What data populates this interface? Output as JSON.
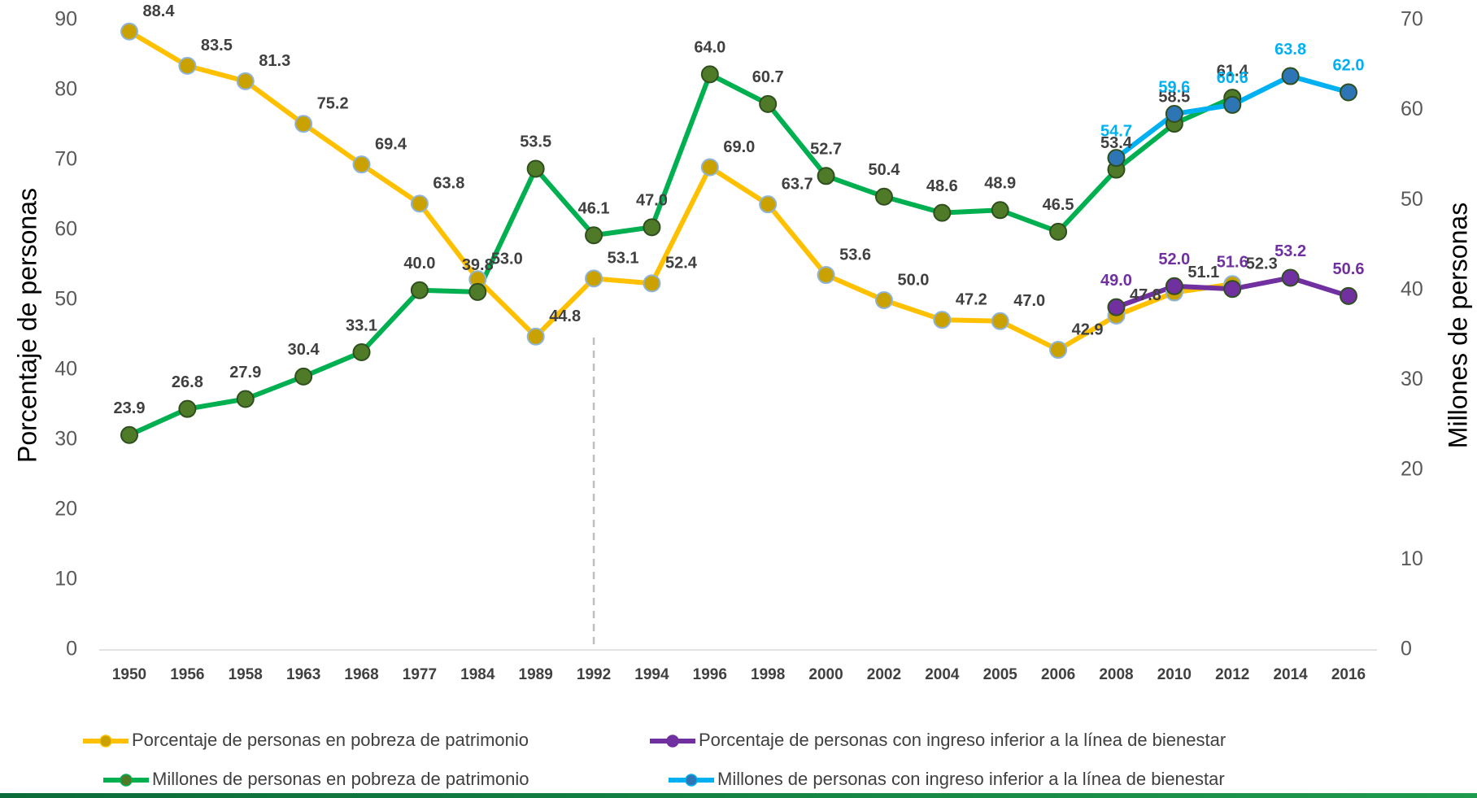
{
  "chart_data": {
    "type": "line",
    "y_label": "Porcentaje de personas",
    "y2_label": "Millones de personas",
    "categories": [
      "1950",
      "1956",
      "1958",
      "1963",
      "1968",
      "1977",
      "1984",
      "1989",
      "1992",
      "1994",
      "1996",
      "1998",
      "2000",
      "2002",
      "2004",
      "2005",
      "2006",
      "2008",
      "2010",
      "2012",
      "2014",
      "2016"
    ],
    "ylim": [
      0,
      90
    ],
    "yticks": [
      0,
      10,
      20,
      30,
      40,
      50,
      60,
      70,
      80,
      90
    ],
    "y2lim": [
      0,
      70
    ],
    "y2ticks": [
      0,
      10,
      20,
      30,
      40,
      50,
      60,
      70
    ],
    "series": [
      {
        "name": "Porcentaje de personas en pobreza de patrimonio",
        "color": "#FFC000",
        "marker_color": "#C9A100",
        "label_color": "#404040",
        "values": [
          88.4,
          83.5,
          81.3,
          75.2,
          69.4,
          63.8,
          53.0,
          44.8,
          53.1,
          52.4,
          69.0,
          63.7,
          53.6,
          50.0,
          47.2,
          47.0,
          42.9,
          47.8,
          51.1,
          52.3,
          null,
          null
        ],
        "value_labels": [
          "88.4",
          "83.5",
          "81.3",
          "75.2",
          "69.4",
          "63.8",
          "53.0",
          "44.8",
          "53.1",
          "52.4",
          "69.0",
          "63.7",
          "53.6",
          "50.0",
          "47.2",
          "47.0",
          "42.9",
          "47.8",
          "51.1",
          "52.3",
          null,
          null
        ]
      },
      {
        "name": "Porcentaje de personas con ingreso inferior a la línea de bienestar",
        "color": "#7030A0",
        "marker_color": "#7030A0",
        "label_color": "#7030A0",
        "values": [
          null,
          null,
          null,
          null,
          null,
          null,
          null,
          null,
          null,
          null,
          null,
          null,
          null,
          null,
          null,
          null,
          null,
          49.0,
          52.0,
          51.6,
          53.2,
          50.6
        ],
        "value_labels": [
          null,
          null,
          null,
          null,
          null,
          null,
          null,
          null,
          null,
          null,
          null,
          null,
          null,
          null,
          null,
          null,
          null,
          "49.0",
          "52.0",
          "51.6",
          "53.2",
          "50.6"
        ]
      },
      {
        "name": "Millones de personas en pobreza de patrimonio",
        "color": "#00B050",
        "marker_color": "#4F7A28",
        "label_color": "#404040",
        "axis": "y2",
        "values": [
          23.9,
          26.8,
          27.9,
          30.4,
          33.1,
          40.0,
          39.8,
          53.5,
          46.1,
          47.0,
          64.0,
          60.7,
          52.7,
          50.4,
          48.6,
          48.9,
          46.5,
          53.4,
          58.5,
          61.4,
          null,
          null
        ],
        "value_labels": [
          "23.9",
          "26.8",
          "27.9",
          "30.4",
          "33.1",
          "40.0",
          "39.8",
          "53.5",
          "46.1",
          "47.0",
          "64.0",
          "60.7",
          "52.7",
          "50.4",
          "48.6",
          "48.9",
          "46.5",
          "53.4",
          "58.5",
          "61.4",
          null,
          null
        ]
      },
      {
        "name": "Millones de personas con ingreso inferior a la línea de bienestar",
        "color": "#00B0F0",
        "marker_color": "#2E75B6",
        "label_color": "#00B0F0",
        "axis": "y2",
        "values": [
          null,
          null,
          null,
          null,
          null,
          null,
          null,
          null,
          null,
          null,
          null,
          null,
          null,
          null,
          null,
          null,
          null,
          54.7,
          59.6,
          60.6,
          63.8,
          62.0
        ],
        "value_labels": [
          null,
          null,
          null,
          null,
          null,
          null,
          null,
          null,
          null,
          null,
          null,
          null,
          null,
          null,
          null,
          null,
          null,
          "54.7",
          "59.6",
          "60.6",
          "63.8",
          "62.0"
        ]
      }
    ]
  }
}
